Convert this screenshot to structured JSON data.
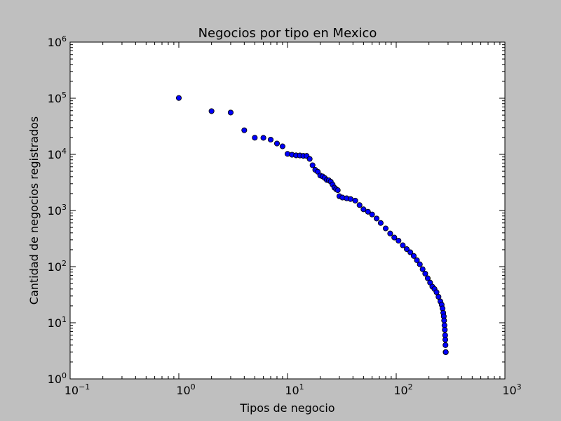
{
  "chart_data": {
    "type": "scatter",
    "title": "Negocios por tipo en Mexico",
    "xlabel": "Tipos de negocio",
    "ylabel": "Cantidad de negocios registrados",
    "x_scale": "log",
    "y_scale": "log",
    "xlim": [
      0.1,
      1000
    ],
    "ylim": [
      1,
      1000000
    ],
    "x_ticks": [
      {
        "base": "10",
        "exp": "−1"
      },
      {
        "base": "10",
        "exp": "0"
      },
      {
        "base": "10",
        "exp": "1"
      },
      {
        "base": "10",
        "exp": "2"
      },
      {
        "base": "10",
        "exp": "3"
      }
    ],
    "y_ticks": [
      {
        "base": "10",
        "exp": "0"
      },
      {
        "base": "10",
        "exp": "1"
      },
      {
        "base": "10",
        "exp": "2"
      },
      {
        "base": "10",
        "exp": "3"
      },
      {
        "base": "10",
        "exp": "4"
      },
      {
        "base": "10",
        "exp": "5"
      },
      {
        "base": "10",
        "exp": "6"
      }
    ],
    "grid": false,
    "marker_color": "#0000ff",
    "marker_edge": "#000000",
    "background": "#bfbfbf",
    "plot_background": "#ffffff",
    "points": [
      {
        "x": 1,
        "y": 101000
      },
      {
        "x": 2,
        "y": 58900
      },
      {
        "x": 3,
        "y": 55600
      },
      {
        "x": 4,
        "y": 26900
      },
      {
        "x": 5,
        "y": 19800
      },
      {
        "x": 6,
        "y": 19700
      },
      {
        "x": 7,
        "y": 18300
      },
      {
        "x": 8,
        "y": 15600
      },
      {
        "x": 9,
        "y": 13900
      },
      {
        "x": 10,
        "y": 10200
      },
      {
        "x": 11,
        "y": 9850
      },
      {
        "x": 12,
        "y": 9600
      },
      {
        "x": 13,
        "y": 9550
      },
      {
        "x": 14,
        "y": 9400
      },
      {
        "x": 15,
        "y": 9380
      },
      {
        "x": 16,
        "y": 8300
      },
      {
        "x": 17,
        "y": 6400
      },
      {
        "x": 18,
        "y": 5300
      },
      {
        "x": 19,
        "y": 4900
      },
      {
        "x": 20,
        "y": 4200
      },
      {
        "x": 21,
        "y": 4050
      },
      {
        "x": 22,
        "y": 3800
      },
      {
        "x": 23,
        "y": 3500
      },
      {
        "x": 24,
        "y": 3450
      },
      {
        "x": 25,
        "y": 3250
      },
      {
        "x": 26,
        "y": 2900
      },
      {
        "x": 27,
        "y": 2550
      },
      {
        "x": 28,
        "y": 2400
      },
      {
        "x": 29,
        "y": 2300
      },
      {
        "x": 30,
        "y": 1800
      },
      {
        "x": 32,
        "y": 1700
      },
      {
        "x": 35,
        "y": 1650
      },
      {
        "x": 38,
        "y": 1600
      },
      {
        "x": 42,
        "y": 1500
      },
      {
        "x": 46,
        "y": 1250
      },
      {
        "x": 50,
        "y": 1050
      },
      {
        "x": 55,
        "y": 950
      },
      {
        "x": 60,
        "y": 850
      },
      {
        "x": 66,
        "y": 720
      },
      {
        "x": 72,
        "y": 600
      },
      {
        "x": 80,
        "y": 480
      },
      {
        "x": 88,
        "y": 390
      },
      {
        "x": 96,
        "y": 330
      },
      {
        "x": 105,
        "y": 290
      },
      {
        "x": 115,
        "y": 240
      },
      {
        "x": 125,
        "y": 205
      },
      {
        "x": 135,
        "y": 180
      },
      {
        "x": 145,
        "y": 155
      },
      {
        "x": 155,
        "y": 130
      },
      {
        "x": 165,
        "y": 110
      },
      {
        "x": 175,
        "y": 90
      },
      {
        "x": 185,
        "y": 75
      },
      {
        "x": 195,
        "y": 62
      },
      {
        "x": 205,
        "y": 52
      },
      {
        "x": 215,
        "y": 44
      },
      {
        "x": 225,
        "y": 40
      },
      {
        "x": 235,
        "y": 35
      },
      {
        "x": 245,
        "y": 29
      },
      {
        "x": 255,
        "y": 24
      },
      {
        "x": 262,
        "y": 21
      },
      {
        "x": 267,
        "y": 18
      },
      {
        "x": 271,
        "y": 15
      },
      {
        "x": 274,
        "y": 13
      },
      {
        "x": 276,
        "y": 11
      },
      {
        "x": 278,
        "y": 9
      },
      {
        "x": 280,
        "y": 7.5
      },
      {
        "x": 282,
        "y": 6
      },
      {
        "x": 283,
        "y": 5
      },
      {
        "x": 284,
        "y": 4
      },
      {
        "x": 285,
        "y": 3
      },
      {
        "x": 286,
        "y": 3
      }
    ]
  }
}
